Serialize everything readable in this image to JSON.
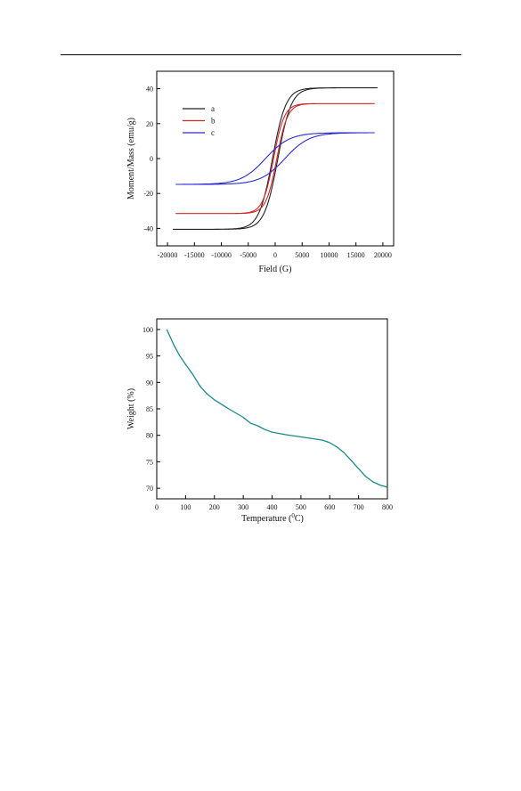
{
  "chart_data": [
    {
      "type": "line",
      "title": "",
      "xlabel": "Field (G)",
      "ylabel": "Moment/Mass (emu/g)",
      "xlim": [
        -22000,
        22000
      ],
      "ylim": [
        -50,
        50
      ],
      "xticks": [
        -20000,
        -15000,
        -10000,
        -5000,
        0,
        5000,
        10000,
        15000,
        20000
      ],
      "xtick_labels": [
        "-20000",
        "-15000",
        "-10000",
        "-5000",
        "0",
        "5000",
        "10000",
        "15000",
        "20000"
      ],
      "yticks": [
        -40,
        -20,
        0,
        20,
        40
      ],
      "ytick_labels": [
        "-40",
        "-20",
        "0",
        "20",
        "40"
      ],
      "legend": {
        "position": "top-left",
        "entries": [
          "a",
          "b",
          "c"
        ]
      },
      "grid": false,
      "series": [
        {
          "name": "a",
          "color": "#222222",
          "ms": 40.5,
          "hc": 500,
          "k": 2500,
          "vmax": 19000,
          "upper_branch_x": [
            -19000,
            -10000,
            -5000,
            -2000,
            0,
            2000,
            5000,
            10000,
            19000
          ],
          "upper_branch_y": [
            -38.5,
            -34.7,
            -25.6,
            -11.5,
            7.9,
            20.7,
            32.0,
            37.8,
            39.1
          ]
        },
        {
          "name": "b",
          "color": "#cc2a2a",
          "ms": 31.5,
          "hc": 300,
          "k": 2000,
          "vmax": 18500,
          "upper_branch_x": [
            -18500,
            -10000,
            -5000,
            -2000,
            0,
            2000,
            5000,
            10000,
            18500
          ],
          "upper_branch_y": [
            -29.8,
            -27.7,
            -22.8,
            -11.8,
            4.7,
            19.4,
            25.9,
            29.6,
            30.6
          ]
        },
        {
          "name": "c",
          "color": "#2a2ad0",
          "ms": 14.8,
          "hc": 1800,
          "k": 4500,
          "vmax": 18500,
          "upper_branch_x": [
            -18500,
            -10000,
            -5000,
            -2000,
            0,
            2000,
            5000,
            10000,
            18500
          ],
          "upper_branch_y": [
            -13.5,
            -10.5,
            -5.3,
            1.2,
            5.5,
            8.7,
            11.7,
            13.6,
            14.2
          ]
        }
      ]
    },
    {
      "type": "line",
      "title": "",
      "xlabel": "Temperature (°C)",
      "xlabel_parts": [
        "Temperature (",
        "0",
        "C)"
      ],
      "ylabel": "Weight (%)",
      "xlim": [
        0,
        800
      ],
      "ylim": [
        68,
        102
      ],
      "xticks": [
        0,
        100,
        200,
        300,
        400,
        500,
        600,
        700,
        800
      ],
      "xtick_labels": [
        "0",
        "100",
        "200",
        "300",
        "400",
        "500",
        "600",
        "700",
        "800"
      ],
      "yticks": [
        70,
        75,
        80,
        85,
        90,
        95,
        100
      ],
      "ytick_labels": [
        "70",
        "75",
        "80",
        "85",
        "90",
        "95",
        "100"
      ],
      "grid": false,
      "series": [
        {
          "color": "#1b8a8a",
          "x": [
            35,
            60,
            80,
            100,
            125,
            150,
            175,
            200,
            250,
            300,
            325,
            350,
            375,
            400,
            450,
            500,
            550,
            575,
            600,
            625,
            650,
            675,
            700,
            725,
            750,
            775,
            800
          ],
          "y": [
            100,
            97.0,
            95.0,
            93.4,
            91.5,
            89.3,
            87.8,
            86.7,
            85.0,
            83.4,
            82.3,
            81.8,
            81.1,
            80.6,
            80.1,
            79.7,
            79.3,
            79.1,
            78.6,
            77.8,
            76.7,
            75.2,
            73.7,
            72.2,
            71.2,
            70.6,
            70.2
          ]
        }
      ]
    }
  ]
}
